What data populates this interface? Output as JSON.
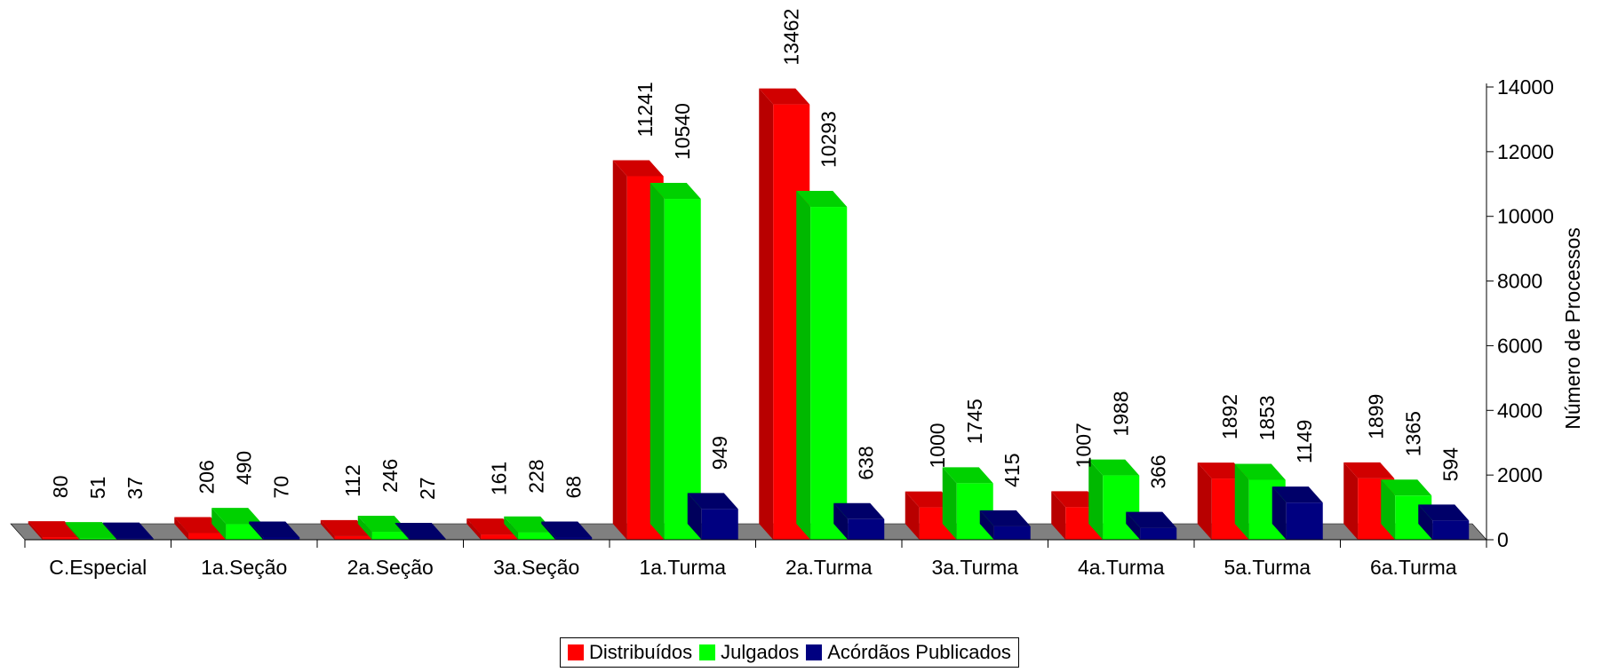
{
  "chart_data": {
    "type": "bar",
    "categories": [
      "C.Especial",
      "1a.Seção",
      "2a.Seção",
      "3a.Seção",
      "1a.Turma",
      "2a.Turma",
      "3a.Turma",
      "4a.Turma",
      "5a.Turma",
      "6a.Turma"
    ],
    "series": [
      {
        "name": "Distribuídos",
        "color": "#ff0000",
        "values": [
          80,
          206,
          112,
          161,
          11241,
          13462,
          1000,
          1007,
          1892,
          1899
        ]
      },
      {
        "name": "Julgados",
        "color": "#00ff00",
        "values": [
          51,
          490,
          246,
          228,
          10540,
          10293,
          1745,
          1988,
          1853,
          1365
        ]
      },
      {
        "name": "Acórdãos Publicados",
        "color": "#000080",
        "values": [
          37,
          70,
          27,
          68,
          949,
          638,
          415,
          366,
          1149,
          594
        ]
      }
    ],
    "ylabel": "Número de Processos",
    "ylim": [
      0,
      14000
    ],
    "yticks": [
      "0",
      "2000",
      "4000",
      "6000",
      "8000",
      "10000",
      "12000",
      "14000"
    ],
    "y_axis_side": "right",
    "style": "3d-clustered-column",
    "floor_color": "#808080",
    "legend_position": "bottom"
  }
}
